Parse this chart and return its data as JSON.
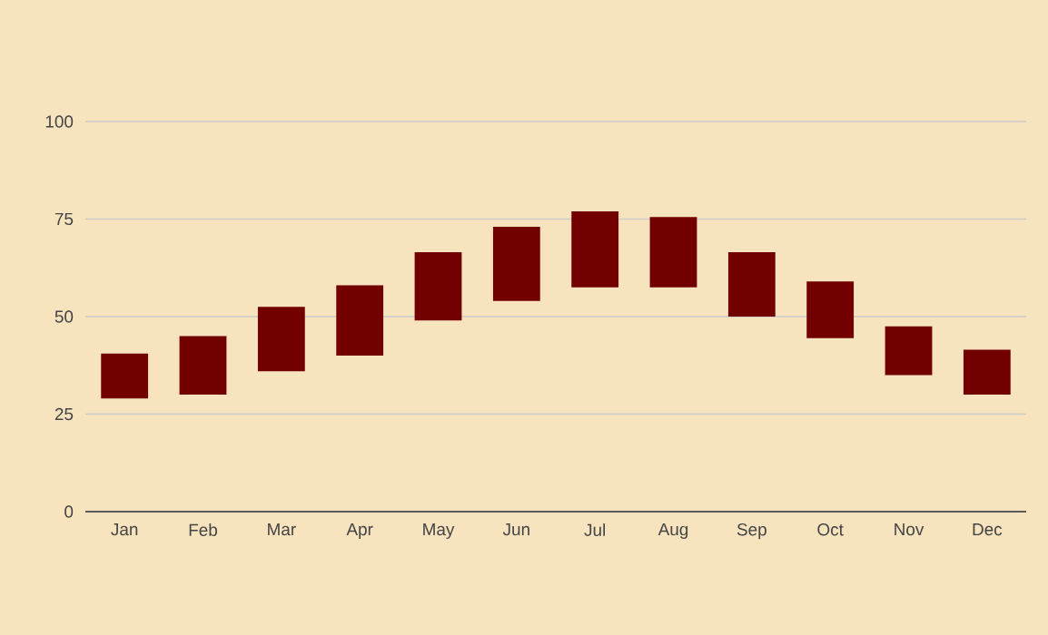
{
  "chart_data": {
    "type": "bar",
    "categories": [
      "Jan",
      "Feb",
      "Mar",
      "Apr",
      "May",
      "Jun",
      "Jul",
      "Aug",
      "Sep",
      "Oct",
      "Nov",
      "Dec"
    ],
    "base": [
      29,
      30,
      36,
      40,
      49,
      54,
      57.5,
      57.5,
      50,
      44.5,
      35,
      30
    ],
    "values": [
      11.5,
      15,
      16.5,
      18,
      17.5,
      19,
      19.5,
      18,
      16.5,
      14.5,
      12.5,
      11.5
    ],
    "color": "#730000",
    "ylim": [
      0,
      100
    ],
    "yticks": [
      0,
      25,
      50,
      75,
      100
    ],
    "grid": "y"
  }
}
